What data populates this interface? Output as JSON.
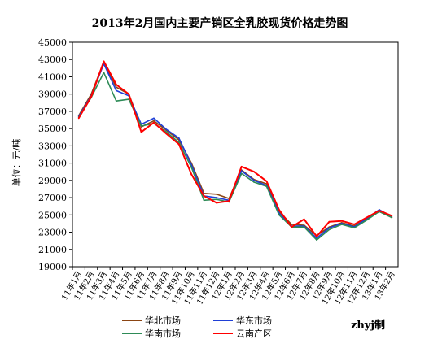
{
  "chart_data": {
    "type": "line",
    "title": "2013年2月国内主要产销区全乳胶现货价格走势图",
    "ylabel": "单位：元/吨",
    "xlabel": "",
    "ylim": [
      19000,
      45000
    ],
    "yticks": [
      19000,
      21000,
      23000,
      25000,
      27000,
      29000,
      31000,
      33000,
      35000,
      37000,
      39000,
      41000,
      43000,
      45000
    ],
    "grid": false,
    "legend_position": "bottom",
    "credit": "zhyj制",
    "categories": [
      "11年1月",
      "11年2月",
      "11年3月",
      "11年4月",
      "11年5月",
      "11年6月",
      "11年7月",
      "11年8月",
      "11年9月",
      "11年10月",
      "11年11月",
      "11年12月",
      "12年1月",
      "12年2月",
      "12年3月",
      "12年4月",
      "12年5月",
      "12年6月",
      "12年7月",
      "12年8月",
      "12年9月",
      "12年10月",
      "12年11月",
      "12年12月",
      "13年1月",
      "13年2月"
    ],
    "series": [
      {
        "name": "华北市场",
        "color": "#8B4513",
        "values": [
          36500,
          39000,
          42700,
          39800,
          39000,
          35200,
          35900,
          34800,
          33700,
          31000,
          27500,
          27400,
          26900,
          30200,
          29100,
          28600,
          25400,
          23900,
          23800,
          22600,
          23600,
          24100,
          23700,
          24500,
          25400,
          24700
        ]
      },
      {
        "name": "华东市场",
        "color": "#1f3fd6",
        "values": [
          36400,
          38800,
          42500,
          39400,
          38800,
          35500,
          36200,
          34900,
          33900,
          30800,
          27200,
          27000,
          26700,
          30100,
          29000,
          28400,
          25200,
          23700,
          23700,
          22300,
          23500,
          24000,
          23600,
          24600,
          25600,
          24800
        ]
      },
      {
        "name": "华南市场",
        "color": "#2e8b57",
        "values": [
          36300,
          38600,
          41500,
          38200,
          38400,
          35300,
          35600,
          34600,
          33400,
          30500,
          26700,
          26800,
          26500,
          29800,
          28800,
          28300,
          25000,
          23600,
          23600,
          22100,
          23300,
          23900,
          23500,
          24400,
          25400,
          24700
        ]
      },
      {
        "name": "云南产区",
        "color": "#ff0000",
        "values": [
          36200,
          38700,
          42800,
          40100,
          39000,
          34600,
          35700,
          34400,
          33200,
          29700,
          27200,
          26400,
          26600,
          30600,
          30000,
          28900,
          25600,
          23600,
          24500,
          22500,
          24200,
          24300,
          23900,
          24700,
          25500,
          24900
        ]
      }
    ]
  }
}
